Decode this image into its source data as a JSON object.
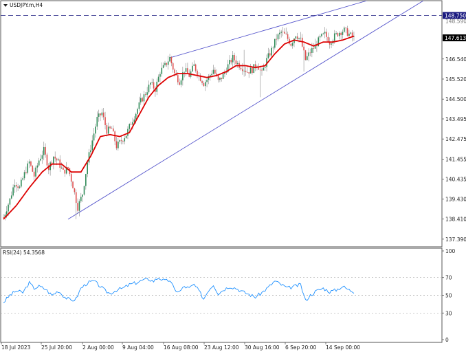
{
  "chart_data": [
    {
      "type": "candlestick",
      "title": "USDJPY.m,H4",
      "ylim": [
        137.0,
        149.5
      ],
      "y_ticks": [
        "137.390",
        "138.410",
        "139.430",
        "140.435",
        "141.455",
        "142.475",
        "143.495",
        "144.500",
        "145.520",
        "146.540",
        "147.613",
        "148.750"
      ],
      "x_ticks": [
        "18 Jul 2023",
        "25 Jul 20:00",
        "2 Aug 00:00",
        "9 Aug 04:00",
        "16 Aug 08:00",
        "23 Aug 12:00",
        "30 Aug 16:00",
        "6 Sep 20:00",
        "14 Sep 00:00"
      ],
      "current_price": "147.613",
      "alert_level": "148.750",
      "hidden_tick": "148.590",
      "colors": {
        "bull": "#2e8b57",
        "bear": "#e05050",
        "ma": "#dd0000",
        "trendline": "#5555cc",
        "price_tag": "#000000",
        "alert_tag": "#1a1a80"
      },
      "price_path": [
        [
          0,
          138.5
        ],
        [
          4,
          139.4
        ],
        [
          7,
          140.3
        ],
        [
          10,
          140.0
        ],
        [
          13,
          140.7
        ],
        [
          16,
          141.3
        ],
        [
          19,
          140.6
        ],
        [
          22,
          141.4
        ],
        [
          25,
          141.9
        ],
        [
          28,
          141.0
        ],
        [
          31,
          141.6
        ],
        [
          34,
          141.3
        ],
        [
          37,
          140.8
        ],
        [
          40,
          141.0
        ],
        [
          43,
          140.1
        ],
        [
          46,
          139.0
        ],
        [
          49,
          139.7
        ],
        [
          52,
          141.3
        ],
        [
          55,
          142.4
        ],
        [
          58,
          143.5
        ],
        [
          61,
          143.8
        ],
        [
          64,
          142.9
        ],
        [
          67,
          143.0
        ],
        [
          70,
          142.1
        ],
        [
          73,
          142.4
        ],
        [
          76,
          142.7
        ],
        [
          79,
          143.3
        ],
        [
          82,
          143.8
        ],
        [
          85,
          144.4
        ],
        [
          88,
          144.8
        ],
        [
          91,
          145.3
        ],
        [
          94,
          145.0
        ],
        [
          97,
          145.9
        ],
        [
          100,
          146.2
        ],
        [
          103,
          146.6
        ],
        [
          106,
          145.8
        ],
        [
          109,
          145.4
        ],
        [
          112,
          146.0
        ],
        [
          115,
          145.7
        ],
        [
          118,
          146.2
        ],
        [
          121,
          145.7
        ],
        [
          124,
          145.3
        ],
        [
          127,
          145.6
        ],
        [
          130,
          146.0
        ],
        [
          133,
          145.4
        ],
        [
          136,
          145.7
        ],
        [
          139,
          146.2
        ],
        [
          142,
          146.6
        ],
        [
          145,
          146.3
        ],
        [
          148,
          146.1
        ],
        [
          151,
          145.9
        ],
        [
          154,
          146.0
        ],
        [
          157,
          146.3
        ],
        [
          160,
          145.8
        ],
        [
          163,
          146.5
        ],
        [
          166,
          147.0
        ],
        [
          169,
          147.6
        ],
        [
          172,
          147.9
        ],
        [
          175,
          147.7
        ],
        [
          178,
          147.3
        ],
        [
          181,
          147.8
        ],
        [
          184,
          147.5
        ],
        [
          187,
          146.5
        ],
        [
          190,
          146.9
        ],
        [
          193,
          147.2
        ],
        [
          196,
          147.6
        ],
        [
          199,
          147.8
        ],
        [
          202,
          147.4
        ],
        [
          205,
          147.7
        ],
        [
          208,
          147.9
        ],
        [
          211,
          148.0
        ],
        [
          214,
          147.8
        ],
        [
          217,
          147.6
        ]
      ],
      "ma_path": [
        [
          0,
          138.4
        ],
        [
          8,
          139.1
        ],
        [
          16,
          140.0
        ],
        [
          24,
          140.8
        ],
        [
          30,
          141.2
        ],
        [
          36,
          141.2
        ],
        [
          42,
          140.8
        ],
        [
          48,
          140.8
        ],
        [
          54,
          141.6
        ],
        [
          60,
          142.6
        ],
        [
          66,
          142.7
        ],
        [
          72,
          142.6
        ],
        [
          78,
          142.8
        ],
        [
          84,
          143.7
        ],
        [
          90,
          144.6
        ],
        [
          96,
          145.2
        ],
        [
          102,
          145.6
        ],
        [
          108,
          145.8
        ],
        [
          114,
          145.8
        ],
        [
          120,
          145.7
        ],
        [
          126,
          145.6
        ],
        [
          132,
          145.7
        ],
        [
          138,
          145.9
        ],
        [
          144,
          146.2
        ],
        [
          150,
          146.2
        ],
        [
          156,
          146.1
        ],
        [
          162,
          146.2
        ],
        [
          168,
          146.8
        ],
        [
          174,
          147.3
        ],
        [
          180,
          147.5
        ],
        [
          186,
          147.4
        ],
        [
          192,
          147.2
        ],
        [
          198,
          147.4
        ],
        [
          204,
          147.4
        ],
        [
          210,
          147.5
        ],
        [
          217,
          147.7
        ]
      ],
      "trendlines": [
        {
          "from": [
            40,
            138.4
          ],
          "to": [
            260,
            149.5
          ]
        },
        {
          "from": [
            103,
            146.6
          ],
          "to": [
            225,
            149.5
          ]
        }
      ],
      "spikes": [
        {
          "i": 149,
          "high": 147.0
        },
        {
          "i": 159,
          "low": 144.6
        },
        {
          "i": 186,
          "low": 145.9
        },
        {
          "i": 45,
          "low": 138.4
        }
      ]
    },
    {
      "type": "line",
      "title": "RSI(24) 54.3568",
      "ylim": [
        0,
        100
      ],
      "y_ticks": [
        "100",
        "70",
        "50",
        "30",
        "0"
      ],
      "levels": [
        70,
        50,
        30
      ],
      "colors": {
        "line": "#1e90ff",
        "level": "#aaaaaa"
      },
      "rsi_path": [
        [
          0,
          42
        ],
        [
          4,
          50
        ],
        [
          8,
          55
        ],
        [
          12,
          53
        ],
        [
          16,
          64
        ],
        [
          19,
          58
        ],
        [
          22,
          60
        ],
        [
          26,
          57
        ],
        [
          30,
          50
        ],
        [
          34,
          55
        ],
        [
          38,
          48
        ],
        [
          42,
          44
        ],
        [
          45,
          46
        ],
        [
          48,
          58
        ],
        [
          52,
          64
        ],
        [
          56,
          66
        ],
        [
          60,
          60
        ],
        [
          63,
          55
        ],
        [
          66,
          52
        ],
        [
          70,
          56
        ],
        [
          74,
          58
        ],
        [
          78,
          62
        ],
        [
          82,
          64
        ],
        [
          86,
          67
        ],
        [
          90,
          68
        ],
        [
          93,
          66
        ],
        [
          96,
          70
        ],
        [
          100,
          66
        ],
        [
          103,
          67
        ],
        [
          106,
          56
        ],
        [
          109,
          54
        ],
        [
          112,
          60
        ],
        [
          115,
          58
        ],
        [
          118,
          62
        ],
        [
          121,
          55
        ],
        [
          124,
          46
        ],
        [
          127,
          56
        ],
        [
          130,
          62
        ],
        [
          133,
          52
        ],
        [
          136,
          56
        ],
        [
          140,
          60
        ],
        [
          144,
          58
        ],
        [
          148,
          54
        ],
        [
          152,
          51
        ],
        [
          156,
          48
        ],
        [
          160,
          53
        ],
        [
          164,
          59
        ],
        [
          168,
          66
        ],
        [
          172,
          62
        ],
        [
          176,
          58
        ],
        [
          180,
          60
        ],
        [
          184,
          62
        ],
        [
          187,
          44
        ],
        [
          190,
          50
        ],
        [
          194,
          55
        ],
        [
          198,
          58
        ],
        [
          202,
          54
        ],
        [
          206,
          56
        ],
        [
          210,
          60
        ],
        [
          214,
          56
        ],
        [
          217,
          54
        ]
      ]
    }
  ]
}
